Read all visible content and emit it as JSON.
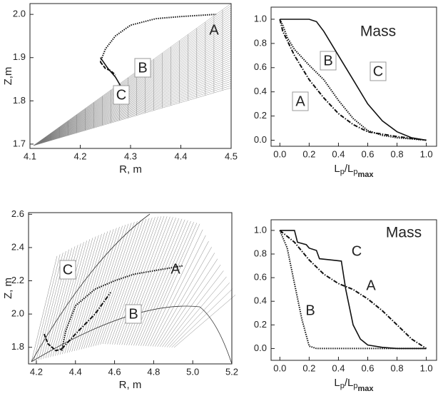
{
  "chart_data": [
    {
      "type": "line",
      "xlabel": "R, m",
      "ylabel": "Z,m",
      "xlim": [
        4.1,
        4.5
      ],
      "ylim": [
        1.69,
        2.025
      ],
      "xticks": [
        4.1,
        4.2,
        4.3,
        4.4,
        4.5
      ],
      "yticks": [
        1.7,
        1.8,
        1.9,
        {
          "value": 2,
          "label": "2.0"
        }
      ],
      "series": [
        {
          "name": "A",
          "color": "#111",
          "style": "dotted",
          "x": [
            4.24,
            4.25,
            4.27,
            4.3,
            4.35,
            4.4,
            4.47
          ],
          "values": [
            1.89,
            1.92,
            1.95,
            1.975,
            1.99,
            1.995,
            2.0
          ]
        },
        {
          "name": "B",
          "color": "#111",
          "style": "dashed",
          "x": [
            4.24,
            4.25,
            4.26,
            4.27
          ],
          "values": [
            1.89,
            1.875,
            1.87,
            1.86
          ]
        },
        {
          "name": "C",
          "color": "#111",
          "style": "solid",
          "x": [
            4.24,
            4.255,
            4.27,
            4.28
          ],
          "values": [
            1.9,
            1.875,
            1.855,
            1.835
          ]
        }
      ]
    },
    {
      "type": "line",
      "xlabel": [
        "L",
        "p",
        "/L",
        "p",
        "max"
      ],
      "annotation": "Mass",
      "xlim": [
        -0.06,
        1.07
      ],
      "ylim": [
        -0.05,
        1.1
      ],
      "xticks": [
        {
          "value": 0,
          "label": "0.0"
        },
        {
          "value": 0.2,
          "label": "0.2"
        },
        {
          "value": 0.4,
          "label": "0.4"
        },
        {
          "value": 0.6,
          "label": "0.6"
        },
        {
          "value": 0.8,
          "label": "0.8"
        },
        {
          "value": 1,
          "label": "1.0"
        }
      ],
      "yticks": [
        {
          "value": 0,
          "label": "0.0"
        },
        {
          "value": 0.2,
          "label": "0.2"
        },
        {
          "value": 0.4,
          "label": "0.4"
        },
        {
          "value": 0.6,
          "label": "0.6"
        },
        {
          "value": 0.8,
          "label": "0.8"
        },
        {
          "value": 1,
          "label": "1.0"
        }
      ],
      "series": [
        {
          "name": "A",
          "color": "#111",
          "style": "dash-dot",
          "x": [
            0,
            0.02,
            0.1,
            0.2,
            0.3,
            0.4,
            0.5,
            0.6,
            0.7,
            0.8,
            1
          ],
          "values": [
            1,
            0.9,
            0.7,
            0.5,
            0.35,
            0.22,
            0.13,
            0.07,
            0.05,
            0.03,
            0
          ]
        },
        {
          "name": "B",
          "color": "#111",
          "style": "dotted",
          "x": [
            0,
            0.02,
            0.05,
            0.1,
            0.2,
            0.3,
            0.4,
            0.5,
            0.6,
            0.7,
            0.8,
            1
          ],
          "values": [
            1,
            0.95,
            0.85,
            0.75,
            0.62,
            0.5,
            0.33,
            0.18,
            0.08,
            0.04,
            0.02,
            0
          ]
        },
        {
          "name": "C",
          "color": "#111",
          "style": "solid",
          "x": [
            0,
            0.2,
            0.25,
            0.3,
            0.4,
            0.5,
            0.6,
            0.7,
            0.8,
            0.9,
            1
          ],
          "values": [
            1,
            1,
            0.98,
            0.9,
            0.7,
            0.5,
            0.3,
            0.16,
            0.07,
            0.02,
            0
          ]
        }
      ]
    },
    {
      "type": "line",
      "xlabel": "R, m",
      "ylabel": "Z, m",
      "xlim": [
        4.16,
        5.2
      ],
      "ylim": [
        1.7,
        2.61
      ],
      "xticks": [
        4.2,
        4.4,
        4.6,
        4.8,
        {
          "value": 5,
          "label": "5.0"
        },
        5.2
      ],
      "yticks": [
        1.8,
        {
          "value": 2,
          "label": "2.0"
        },
        2.2,
        2.4,
        2.6
      ],
      "series": [
        {
          "name": "A",
          "color": "#111",
          "style": "dotted",
          "x": [
            4.33,
            4.35,
            4.4,
            4.5,
            4.6,
            4.7,
            4.8,
            4.95
          ],
          "values": [
            1.78,
            1.9,
            2.05,
            2.15,
            2.2,
            2.24,
            2.26,
            2.29
          ]
        },
        {
          "name": "B",
          "color": "#111",
          "style": "dash-dot",
          "x": [
            4.33,
            4.4,
            4.5,
            4.58
          ],
          "values": [
            1.79,
            1.88,
            2.0,
            2.13
          ]
        },
        {
          "name": "C",
          "color": "#111",
          "style": "dashed",
          "x": [
            4.24,
            4.26,
            4.3,
            4.33
          ],
          "values": [
            1.88,
            1.82,
            1.78,
            1.79
          ]
        }
      ]
    },
    {
      "type": "line",
      "xlabel": [
        "L",
        "p",
        "/L",
        "p",
        "max"
      ],
      "annotation": "Mass",
      "xlim": [
        -0.06,
        1.07
      ],
      "ylim": [
        -0.1,
        1.09
      ],
      "xticks": [
        {
          "value": 0,
          "label": "0.0"
        },
        {
          "value": 0.2,
          "label": "0.2"
        },
        {
          "value": 0.4,
          "label": "0.4"
        },
        {
          "value": 0.6,
          "label": "0.6"
        },
        {
          "value": 0.8,
          "label": "0.8"
        },
        {
          "value": 1,
          "label": "1.0"
        }
      ],
      "yticks": [
        {
          "value": 0,
          "label": "0.0"
        },
        {
          "value": 0.2,
          "label": "0.2"
        },
        {
          "value": 0.4,
          "label": "0.4"
        },
        {
          "value": 0.6,
          "label": "0.6"
        },
        {
          "value": 0.8,
          "label": "0.8"
        },
        {
          "value": 1,
          "label": "1.0"
        }
      ],
      "series": [
        {
          "name": "A",
          "color": "#111",
          "style": "dash-dot",
          "x": [
            0,
            0.1,
            0.2,
            0.3,
            0.4,
            0.5,
            0.6,
            0.7,
            0.8,
            0.9,
            1
          ],
          "values": [
            1,
            0.9,
            0.75,
            0.63,
            0.55,
            0.5,
            0.42,
            0.32,
            0.2,
            0.08,
            0
          ]
        },
        {
          "name": "B",
          "color": "#111",
          "style": "dotted",
          "x": [
            0,
            0.05,
            0.1,
            0.15,
            0.2,
            0.25,
            1
          ],
          "values": [
            1,
            0.85,
            0.55,
            0.25,
            0.02,
            0,
            0
          ]
        },
        {
          "name": "C",
          "color": "#111",
          "style": "solid",
          "x": [
            0,
            0.1,
            0.12,
            0.18,
            0.2,
            0.25,
            0.27,
            0.35,
            0.42,
            0.45,
            0.5,
            0.55,
            0.6,
            0.7,
            0.8,
            1
          ],
          "values": [
            1,
            1,
            0.9,
            0.88,
            0.85,
            0.83,
            0.76,
            0.75,
            0.74,
            0.5,
            0.2,
            0.08,
            0.03,
            0.01,
            0,
            0
          ]
        }
      ]
    }
  ]
}
